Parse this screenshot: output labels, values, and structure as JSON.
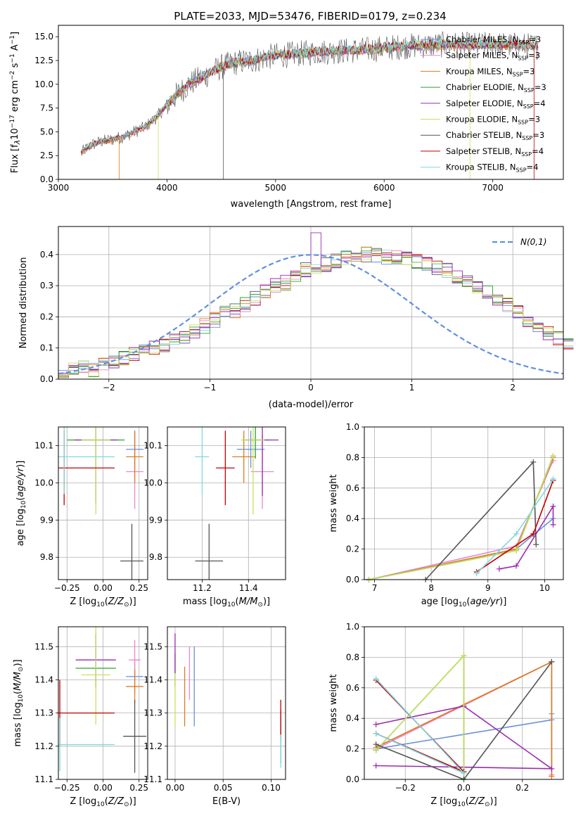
{
  "figure": {
    "title": "PLATE=2033, MJD=53476, FIBERID=0179, z=0.234"
  },
  "colors": {
    "chabrier_miles": "#6a8ee0",
    "salpeter_miles": "#e987c8",
    "kroupa_miles": "#e07b1e",
    "chabrier_elodie": "#2ca02c",
    "salpeter_elodie": "#9a2bb0",
    "kroupa_elodie": "#c8e060",
    "chabrier_stelib": "#555555",
    "salpeter_stelib": "#c00000",
    "kroupa_stelib": "#80d8e0",
    "normal": "#6090e0"
  },
  "chart_data": [
    {
      "id": "spectrum",
      "type": "line",
      "title": "PLATE=2033, MJD=53476, FIBERID=0179, z=0.234",
      "xlabel": "wavelength [Angstrom, rest frame]",
      "ylabel": "Flux [f_λ10^-17 erg cm^-2 s^-1 A^-1]",
      "xlim": [
        3000,
        7650
      ],
      "ylim": [
        0,
        16.2
      ],
      "xticks": [
        3000,
        4000,
        5000,
        6000,
        7000
      ],
      "yticks": [
        0.0,
        2.5,
        5.0,
        7.5,
        10.0,
        12.5,
        15.0
      ],
      "legend_position": "top-right",
      "legend": [
        {
          "label": "Chabrier MILES, N_SSP=3",
          "color": "#6a8ee0"
        },
        {
          "label": "Salpeter MILES, N_SSP=3",
          "color": "#e987c8"
        },
        {
          "label": "Kroupa MILES, N_SSP=3",
          "color": "#e07b1e"
        },
        {
          "label": "Chabrier ELODIE, N_SSP=3",
          "color": "#2ca02c"
        },
        {
          "label": "Salpeter ELODIE, N_SSP=4",
          "color": "#9a2bb0"
        },
        {
          "label": "Kroupa ELODIE, N_SSP=3",
          "color": "#c8e060"
        },
        {
          "label": "Chabrier STELIB, N_SSP=3",
          "color": "#555555"
        },
        {
          "label": "Salpeter STELIB, N_SSP=4",
          "color": "#c00000"
        },
        {
          "label": "Kroupa STELIB, N_SSP=4",
          "color": "#80d8e0"
        }
      ],
      "observed_continuum": {
        "x": [
          3210,
          3300,
          3400,
          3500,
          3600,
          3700,
          3800,
          3900,
          4000,
          4100,
          4200,
          4300,
          4400,
          4500,
          4600,
          4700,
          4800,
          4900,
          5000,
          5200,
          5400,
          5600,
          5800,
          6000,
          6200,
          6400,
          6600,
          6800,
          7000,
          7200,
          7400
        ],
        "y": [
          2.8,
          3.6,
          4.0,
          4.2,
          4.5,
          5.0,
          5.5,
          6.5,
          7.8,
          9.0,
          10.0,
          10.6,
          11.2,
          11.8,
          12.2,
          12.4,
          12.5,
          12.8,
          13.0,
          13.2,
          13.4,
          13.5,
          13.6,
          13.8,
          14.0,
          14.1,
          14.2,
          14.1,
          14.2,
          14.1,
          14.0
        ]
      }
    },
    {
      "id": "residuals",
      "type": "histogram",
      "xlabel": "(data-model)/error",
      "ylabel": "Normed distribution",
      "xlim": [
        -2.5,
        2.5
      ],
      "ylim": [
        0,
        0.49
      ],
      "xticks": [
        -2,
        -1,
        0,
        1,
        2
      ],
      "yticks": [
        0.0,
        0.1,
        0.2,
        0.3,
        0.4
      ],
      "legend_label": "N(0,1)",
      "legend_position": "top-right",
      "bin_width": 0.1,
      "bins_from": -2.5,
      "approx_histogram": [
        0.02,
        0.03,
        0.04,
        0.03,
        0.05,
        0.06,
        0.07,
        0.08,
        0.09,
        0.1,
        0.11,
        0.12,
        0.13,
        0.15,
        0.17,
        0.19,
        0.21,
        0.22,
        0.24,
        0.26,
        0.28,
        0.3,
        0.31,
        0.33,
        0.35,
        0.36,
        0.37,
        0.38,
        0.39,
        0.4,
        0.4,
        0.4,
        0.39,
        0.39,
        0.39,
        0.38,
        0.37,
        0.36,
        0.35,
        0.33,
        0.32,
        0.3,
        0.28,
        0.26,
        0.24,
        0.22,
        0.19,
        0.17,
        0.15,
        0.13,
        0.11
      ]
    },
    {
      "id": "age_vs_z",
      "type": "scatter",
      "xlabel": "Z [log10(Z/Z⊙)]",
      "ylabel": "age [log10(age/yr)]",
      "xlim": [
        -0.31,
        0.31
      ],
      "ylim": [
        9.74,
        10.15
      ],
      "xticks": [
        -0.25,
        0.0,
        0.25
      ],
      "xtick_labels": [
        "−0.25",
        "0.00",
        "0.25"
      ],
      "yticks": [
        9.8,
        9.9,
        10.0,
        10.1
      ],
      "points": [
        {
          "model": "chabrier_miles",
          "x": 0.22,
          "y": 10.09,
          "xerr": 0.06,
          "yerr": 0.05
        },
        {
          "model": "salpeter_miles",
          "x": 0.22,
          "y": 10.03,
          "xerr": 0.06,
          "yerr": 0.1
        },
        {
          "model": "kroupa_miles",
          "x": 0.22,
          "y": 10.07,
          "xerr": 0.06,
          "yerr": 0.07
        },
        {
          "model": "chabrier_elodie",
          "x": -0.05,
          "y": 10.115,
          "xerr": 0.2,
          "yerr": 0.02
        },
        {
          "model": "salpeter_elodie",
          "x": -0.05,
          "y": 10.115,
          "xerr": 0.15,
          "yerr": 0.17
        },
        {
          "model": "kroupa_elodie",
          "x": -0.05,
          "y": 10.115,
          "xerr": 0.1,
          "yerr": 0.2
        },
        {
          "model": "chabrier_stelib",
          "x": 0.2,
          "y": 9.79,
          "xerr": 0.08,
          "yerr": 0.1
        },
        {
          "model": "salpeter_stelib",
          "x": -0.27,
          "y": 10.04,
          "xerr": 0.35,
          "yerr": 0.1
        },
        {
          "model": "kroupa_stelib",
          "x": -0.27,
          "y": 10.07,
          "xerr": 0.35,
          "yerr": 0.1
        }
      ]
    },
    {
      "id": "age_vs_mass",
      "type": "scatter",
      "xlabel": "mass [log10(M/M⊙)]",
      "ylabel": "",
      "xlim": [
        11.05,
        11.56
      ],
      "ylim": [
        9.74,
        10.15
      ],
      "xticks": [
        11.2,
        11.4
      ],
      "yticks": [
        9.8,
        9.9,
        10.0,
        10.1
      ],
      "points": [
        {
          "model": "chabrier_miles",
          "x": 11.41,
          "y": 10.09,
          "xerr": 0.06,
          "yerr": 0.05
        },
        {
          "model": "salpeter_miles",
          "x": 11.46,
          "y": 10.03,
          "xerr": 0.05,
          "yerr": 0.1
        },
        {
          "model": "kroupa_miles",
          "x": 11.38,
          "y": 10.07,
          "xerr": 0.05,
          "yerr": 0.07
        },
        {
          "model": "chabrier_elodie",
          "x": 11.43,
          "y": 10.115,
          "xerr": 0.06,
          "yerr": 0.05
        },
        {
          "model": "salpeter_elodie",
          "x": 11.46,
          "y": 10.115,
          "xerr": 0.07,
          "yerr": 0.15
        },
        {
          "model": "kroupa_elodie",
          "x": 11.42,
          "y": 10.115,
          "xerr": 0.05,
          "yerr": 0.2
        },
        {
          "model": "chabrier_stelib",
          "x": 11.23,
          "y": 9.79,
          "xerr": 0.06,
          "yerr": 0.1
        },
        {
          "model": "salpeter_stelib",
          "x": 11.3,
          "y": 10.04,
          "xerr": 0.04,
          "yerr": 0.1
        },
        {
          "model": "kroupa_stelib",
          "x": 11.2,
          "y": 10.07,
          "xerr": 0.03,
          "yerr": 0.1
        }
      ]
    },
    {
      "id": "mass_weight_vs_age",
      "type": "line",
      "xlabel": "age [log10(age/yr)]",
      "ylabel": "mass weight",
      "xlim": [
        6.82,
        10.33
      ],
      "ylim": [
        0.0,
        1.0
      ],
      "xticks": [
        7,
        8,
        9,
        10
      ],
      "yticks": [
        0.0,
        0.2,
        0.4,
        0.6,
        0.8,
        1.0
      ],
      "series": [
        {
          "model": "chabrier_miles",
          "x": [
            6.9,
            9.5,
            10.15
          ],
          "y": [
            0.0,
            0.2,
            0.4
          ]
        },
        {
          "model": "salpeter_miles",
          "x": [
            6.9,
            9.5,
            10.15
          ],
          "y": [
            0.0,
            0.22,
            0.78
          ]
        },
        {
          "model": "kroupa_miles",
          "x": [
            6.9,
            9.5,
            10.15
          ],
          "y": [
            0.0,
            0.2,
            0.8
          ]
        },
        {
          "model": "chabrier_elodie",
          "x": [
            6.9,
            9.5,
            10.15
          ],
          "y": [
            0.0,
            0.19,
            0.81
          ]
        },
        {
          "model": "salpeter_elodie",
          "x": [
            9.2,
            9.5,
            10.15,
            10.15
          ],
          "y": [
            0.07,
            0.09,
            0.48,
            0.36
          ]
        },
        {
          "model": "kroupa_elodie",
          "x": [
            6.9,
            9.5,
            10.15
          ],
          "y": [
            0.0,
            0.19,
            0.81
          ]
        },
        {
          "model": "chabrier_stelib",
          "x": [
            7.9,
            9.8,
            9.85
          ],
          "y": [
            0.0,
            0.77,
            0.23
          ]
        },
        {
          "model": "salpeter_stelib",
          "x": [
            8.8,
            9.8,
            10.15
          ],
          "y": [
            0.05,
            0.3,
            0.65
          ]
        },
        {
          "model": "kroupa_stelib",
          "x": [
            8.8,
            9.5,
            10.15
          ],
          "y": [
            0.04,
            0.3,
            0.66
          ]
        }
      ]
    },
    {
      "id": "mass_vs_z",
      "type": "scatter",
      "xlabel": "Z [log10(Z/Z⊙)]",
      "ylabel": "mass [log10(M/M⊙)]",
      "xlim": [
        -0.31,
        0.31
      ],
      "ylim": [
        11.1,
        11.56
      ],
      "xticks": [
        -0.25,
        0.0,
        0.25
      ],
      "xtick_labels": [
        "−0.25",
        "0.00",
        "0.25"
      ],
      "yticks": [
        11.1,
        11.2,
        11.3,
        11.4,
        11.5
      ],
      "points": [
        {
          "model": "chabrier_miles",
          "x": 0.22,
          "y": 11.41,
          "xerr": 0.06,
          "yerr": 0.05
        },
        {
          "model": "salpeter_miles",
          "x": 0.22,
          "y": 11.46,
          "xerr": 0.04,
          "yerr": 0.06
        },
        {
          "model": "kroupa_miles",
          "x": 0.22,
          "y": 11.38,
          "xerr": 0.06,
          "yerr": 0.05
        },
        {
          "model": "chabrier_elodie",
          "x": -0.05,
          "y": 11.435,
          "xerr": 0.14,
          "yerr": 0.06
        },
        {
          "model": "salpeter_elodie",
          "x": -0.05,
          "y": 11.46,
          "xerr": 0.14,
          "yerr": 0.08
        },
        {
          "model": "kroupa_elodie",
          "x": -0.05,
          "y": 11.415,
          "xerr": 0.1,
          "yerr": 0.15
        },
        {
          "model": "chabrier_stelib",
          "x": 0.22,
          "y": 11.23,
          "xerr": 0.08,
          "yerr": 0.11
        },
        {
          "model": "salpeter_stelib",
          "x": -0.3,
          "y": 11.3,
          "xerr": 0.38,
          "yerr": 0.1
        },
        {
          "model": "kroupa_stelib",
          "x": -0.3,
          "y": 11.205,
          "xerr": 0.38,
          "yerr": 0.08
        }
      ]
    },
    {
      "id": "mass_vs_ebv",
      "type": "scatter",
      "xlabel": "E(B-V)",
      "ylabel": "",
      "xlim": [
        -0.008,
        0.115
      ],
      "ylim": [
        11.1,
        11.56
      ],
      "xticks": [
        0.0,
        0.05,
        0.1
      ],
      "xtick_labels": [
        "0.00",
        "0.05",
        "0.10"
      ],
      "yticks": [
        11.1,
        11.2,
        11.3,
        11.4,
        11.5
      ],
      "points": [
        {
          "model": "chabrier_miles",
          "x": 0.02,
          "y": 11.38,
          "xerr": 0,
          "yerr": 0.12
        },
        {
          "model": "salpeter_miles",
          "x": 0.015,
          "y": 11.42,
          "xerr": 0,
          "yerr": 0.08
        },
        {
          "model": "kroupa_miles",
          "x": 0.01,
          "y": 11.35,
          "xerr": 0,
          "yerr": 0.09
        },
        {
          "model": "chabrier_elodie",
          "x": 0.0,
          "y": 11.43,
          "xerr": 0,
          "yerr": 0.05
        },
        {
          "model": "salpeter_elodie",
          "x": 0.0,
          "y": 11.48,
          "xerr": 0,
          "yerr": 0.06
        },
        {
          "model": "kroupa_elodie",
          "x": 0.0,
          "y": 11.34,
          "xerr": 0,
          "yerr": 0.08
        },
        {
          "model": "chabrier_stelib",
          "x": 0.11,
          "y": 11.23,
          "xerr": 0,
          "yerr": 0.08
        },
        {
          "model": "salpeter_stelib",
          "x": 0.11,
          "y": 11.28,
          "xerr": 0,
          "yerr": 0.06
        },
        {
          "model": "kroupa_stelib",
          "x": 0.11,
          "y": 11.185,
          "xerr": 0,
          "yerr": 0.05
        }
      ]
    },
    {
      "id": "mass_weight_vs_z",
      "type": "line",
      "xlabel": "Z [log10(Z/Z⊙)]",
      "ylabel": "mass weight",
      "xlim": [
        -0.34,
        0.34
      ],
      "ylim": [
        0.0,
        1.0
      ],
      "xticks": [
        -0.2,
        0.0,
        0.2
      ],
      "xtick_labels": [
        "−0.2",
        "0.0",
        "0.2"
      ],
      "yticks": [
        0.0,
        0.2,
        0.4,
        0.6,
        0.8,
        1.0
      ],
      "series": [
        {
          "model": "chabrier_miles",
          "x": [
            -0.3,
            0.3,
            0.3
          ],
          "y": [
            0.2,
            0.39,
            0.43
          ]
        },
        {
          "model": "salpeter_miles",
          "x": [
            -0.3,
            0.3,
            0.3
          ],
          "y": [
            0.2,
            0.77,
            0.03
          ]
        },
        {
          "model": "kroupa_miles",
          "x": [
            -0.3,
            0.3,
            0.3
          ],
          "y": [
            0.21,
            0.77,
            0.02
          ]
        },
        {
          "model": "chabrier_elodie",
          "x": [
            -0.3,
            0.0,
            0.0
          ],
          "y": [
            0.19,
            0.81,
            0.0
          ]
        },
        {
          "model": "salpeter_elodie",
          "x": [
            -0.3,
            0.0,
            0.3,
            -0.3
          ],
          "y": [
            0.36,
            0.48,
            0.07,
            0.09
          ]
        },
        {
          "model": "kroupa_elodie",
          "x": [
            -0.3,
            0.0,
            0.0
          ],
          "y": [
            0.19,
            0.81,
            0.0
          ]
        },
        {
          "model": "chabrier_stelib",
          "x": [
            -0.3,
            0.0,
            0.3
          ],
          "y": [
            0.23,
            0.0,
            0.77
          ]
        },
        {
          "model": "salpeter_stelib",
          "x": [
            -0.3,
            0.0,
            -0.3
          ],
          "y": [
            0.65,
            0.05,
            0.3
          ]
        },
        {
          "model": "kroupa_stelib",
          "x": [
            -0.3,
            0.0,
            -0.3
          ],
          "y": [
            0.66,
            0.04,
            0.3
          ]
        }
      ]
    }
  ]
}
